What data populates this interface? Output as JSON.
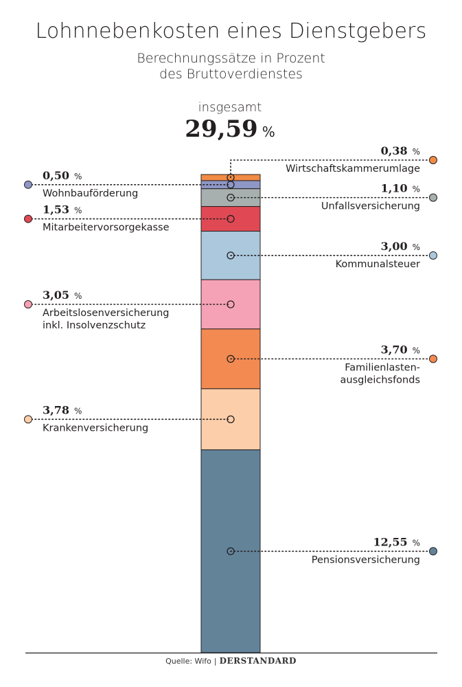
{
  "title": "Lohnnebenkosten eines Dienstgebers",
  "subtitle_line1": "Berechnungssätze in Prozent",
  "subtitle_line2": "des Bruttoverdienstes",
  "total_label": "insgesamt",
  "total_value": "29,59",
  "total_unit": "%",
  "source_label": "Quelle: Wifo",
  "brand": "DERSTANDARD",
  "chart_data": {
    "type": "bar",
    "stacked": true,
    "unit": "%",
    "total": 29.59,
    "segments": [
      {
        "name": "Wirtschaftskammerumlage",
        "value": 0.38,
        "label": "0,38",
        "color": "#f28b45",
        "side": "right"
      },
      {
        "name": "Wohnbauförderung",
        "value": 0.5,
        "label": "0,50",
        "color": "#8e97c5",
        "side": "left"
      },
      {
        "name": "Unfallsversicherung",
        "value": 1.1,
        "label": "1,10",
        "color": "#a7b0ae",
        "side": "right"
      },
      {
        "name": "Mitarbeitervorsorgekasse",
        "value": 1.53,
        "label": "1,53",
        "color": "#e04954",
        "side": "left"
      },
      {
        "name": "Kommunalsteuer",
        "value": 3.0,
        "label": "3,00",
        "color": "#abc8dd",
        "side": "right"
      },
      {
        "name": "Arbeitslosenversicherung inkl. Insolvenzschutz",
        "lines": [
          "Arbeitslosenversicherung",
          "inkl. Insolvenzschutz"
        ],
        "value": 3.05,
        "label": "3,05",
        "color": "#f6a2b6",
        "side": "left"
      },
      {
        "name": "Familienlasten-ausgleichsfonds",
        "lines": [
          "Familienlasten-",
          "ausgleichsfonds"
        ],
        "value": 3.7,
        "label": "3,70",
        "color": "#f28a51",
        "side": "right"
      },
      {
        "name": "Krankenversicherung",
        "value": 3.78,
        "label": "3,78",
        "color": "#fccfaa",
        "side": "left"
      },
      {
        "name": "Pensionsversicherung",
        "value": 12.55,
        "label": "12,55",
        "color": "#638399",
        "side": "right"
      }
    ]
  }
}
